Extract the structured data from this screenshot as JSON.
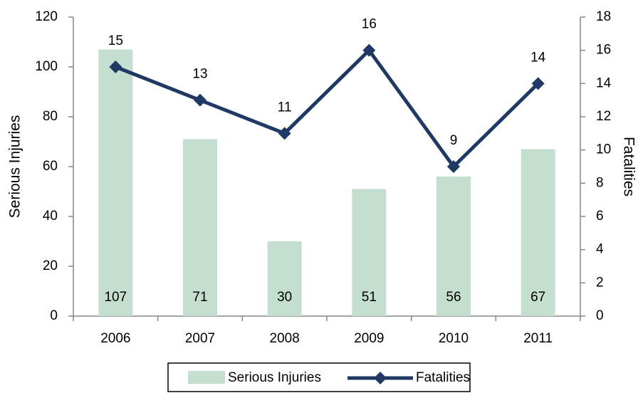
{
  "chart_data": {
    "type": "bar-line",
    "categories": [
      "2006",
      "2007",
      "2008",
      "2009",
      "2010",
      "2011"
    ],
    "series": [
      {
        "name": "Serious Injuries",
        "type": "bar",
        "color": "#c4dfd0",
        "values": [
          107,
          71,
          30,
          51,
          56,
          67
        ]
      },
      {
        "name": "Fatalities",
        "type": "line",
        "color": "#1f3864",
        "axis": "y2",
        "values": [
          15,
          13,
          11,
          16,
          9,
          14
        ]
      }
    ],
    "ylabel": "Serious Injuries",
    "y2label": "Fatalities",
    "ylim": [
      0,
      120
    ],
    "yticks": [
      0,
      20,
      40,
      60,
      80,
      100,
      120
    ],
    "y2lim": [
      0,
      18
    ],
    "y2ticks": [
      0,
      2,
      4,
      6,
      8,
      10,
      12,
      14,
      16,
      18
    ],
    "legend": "bottom"
  }
}
